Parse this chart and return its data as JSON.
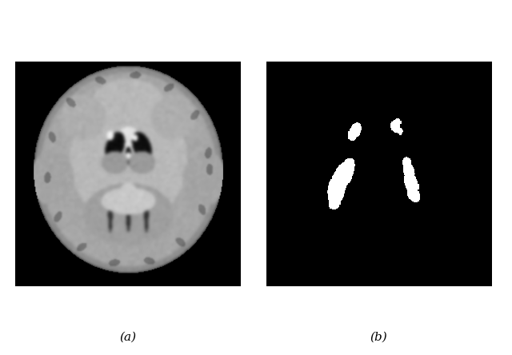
{
  "fig_width": 6.4,
  "fig_height": 4.44,
  "dpi": 100,
  "background_color": "#ffffff",
  "label_a": "(a)",
  "label_b": "(b)",
  "label_fontsize": 11,
  "img_size": 256
}
